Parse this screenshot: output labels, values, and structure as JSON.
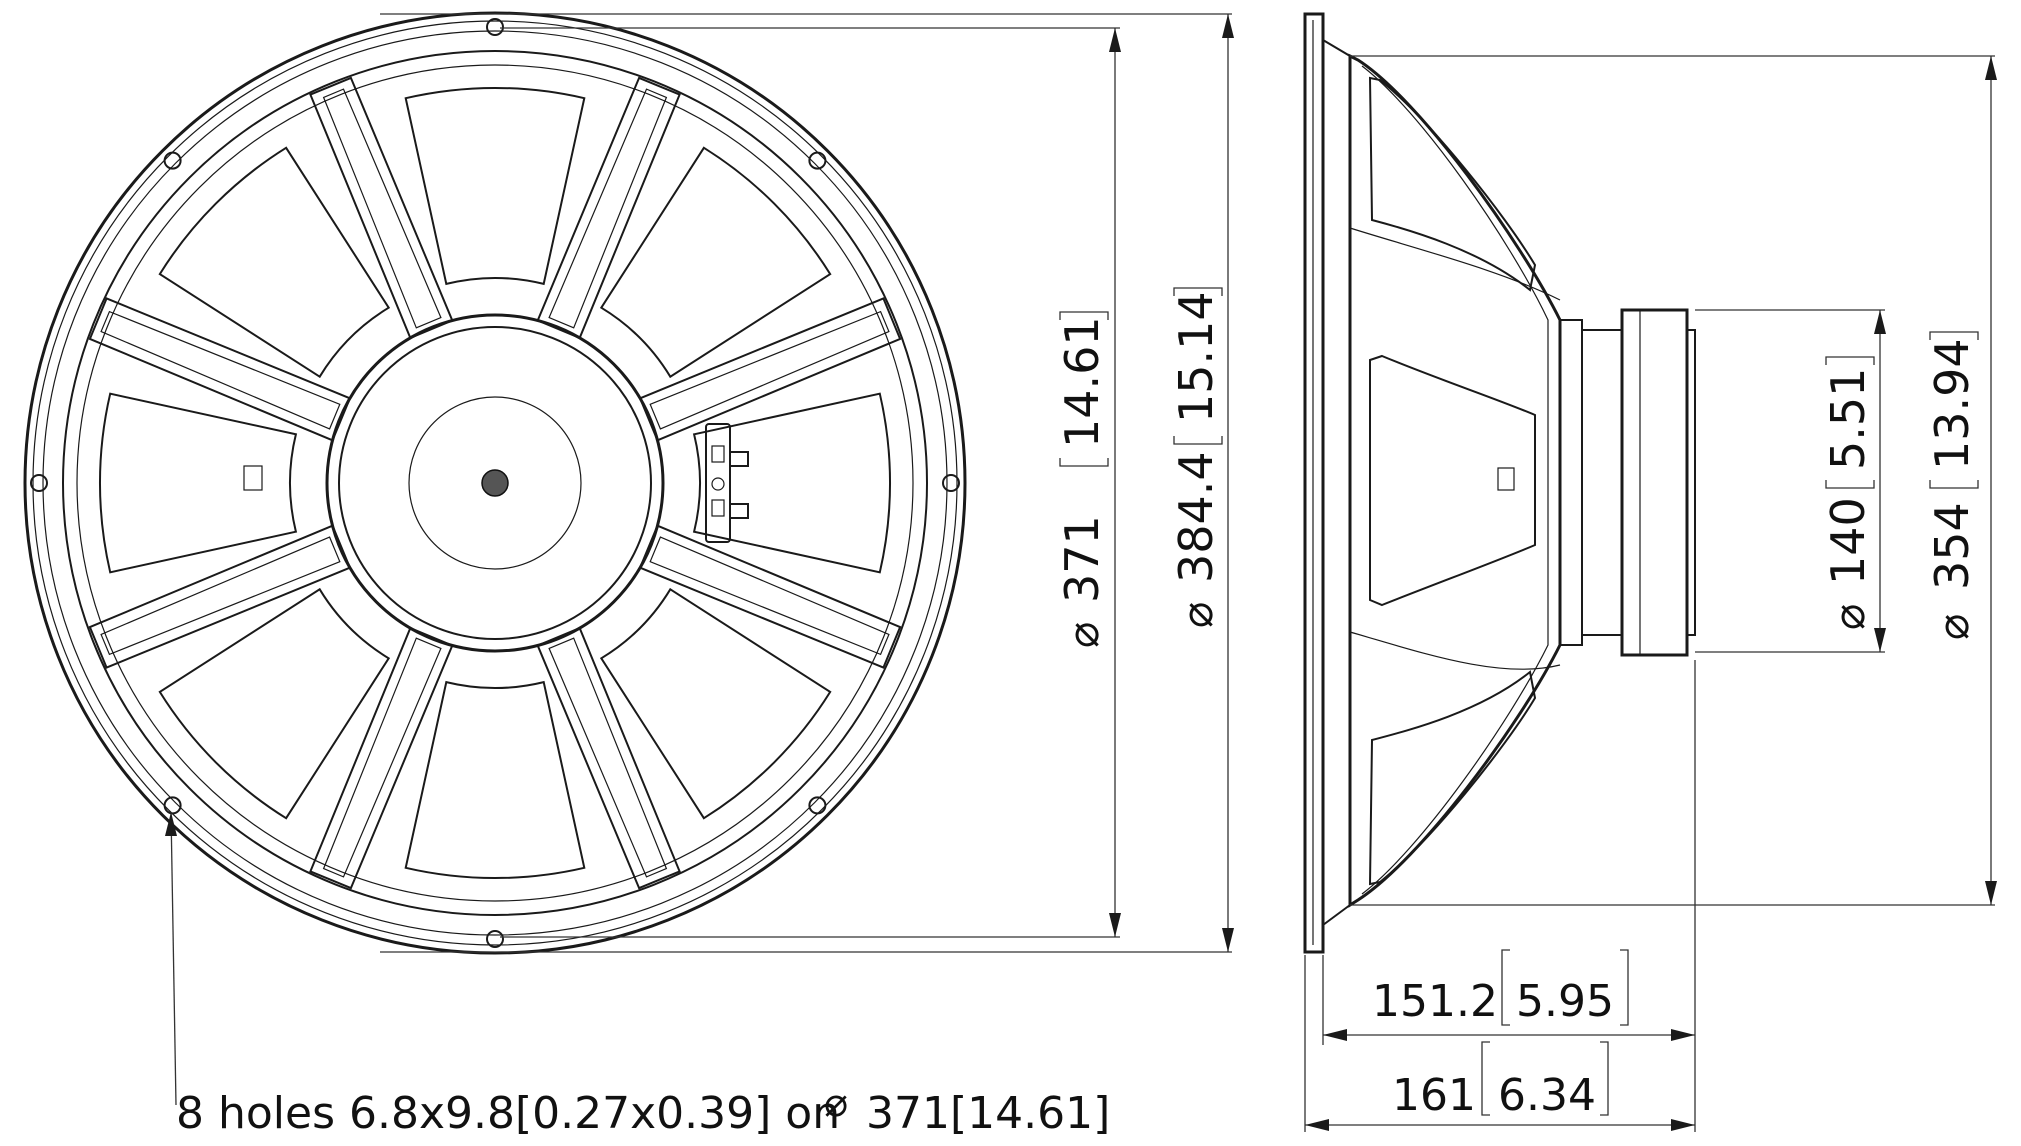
{
  "front_view": {
    "diameter_outer": {
      "mm": "384.4",
      "inch": "15.14"
    },
    "diameter_bolt_circle": {
      "mm": "371",
      "inch": "14.61"
    },
    "mounting_note": "8 holes 6.8x9.8[0.27x0.39] on",
    "mounting_note_circle": "371[14.61]"
  },
  "side_view": {
    "diameter_baffle": {
      "mm": "354",
      "inch": "13.94"
    },
    "diameter_magnet": {
      "mm": "140",
      "inch": "5.51"
    },
    "depth_overall": {
      "mm": "161",
      "inch": "6.34"
    },
    "depth_mounting": {
      "mm": "151.2",
      "inch": "5.95"
    }
  },
  "diameter_symbol": "⌀"
}
